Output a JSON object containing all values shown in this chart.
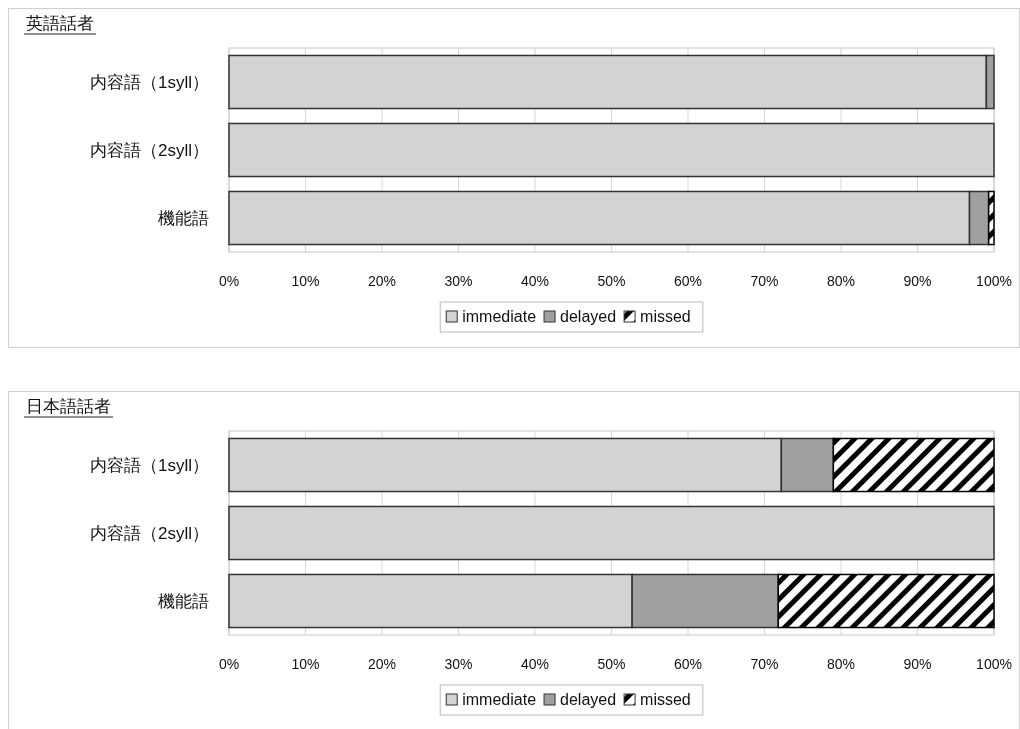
{
  "chart_data": [
    {
      "type": "bar",
      "title": "英語話者",
      "orientation": "horizontal",
      "stacked": true,
      "categories": [
        "内容語（1syll）",
        "内容語（2syll）",
        "機能語"
      ],
      "series": [
        {
          "name": "immediate",
          "color": "#d3d3d3",
          "values": [
            99,
            100,
            96.8
          ]
        },
        {
          "name": "delayed",
          "color": "#a0a0a0",
          "values": [
            1,
            0,
            2.5
          ]
        },
        {
          "name": "missed",
          "color": "#000000",
          "values": [
            0,
            0,
            0.7
          ]
        }
      ],
      "xlim": [
        0,
        100
      ],
      "xticks": [
        {
          "value": 0,
          "label": "0%"
        },
        {
          "value": 10,
          "label": "10%"
        },
        {
          "value": 20,
          "label": "20%"
        },
        {
          "value": 30,
          "label": "30%"
        },
        {
          "value": 40,
          "label": "40%"
        },
        {
          "value": 50,
          "label": "50%"
        },
        {
          "value": 60,
          "label": "60%"
        },
        {
          "value": 70,
          "label": "70%"
        },
        {
          "value": 80,
          "label": "80%"
        },
        {
          "value": 90,
          "label": "90%"
        },
        {
          "value": 100,
          "label": "100%"
        }
      ],
      "grid": "x",
      "legend": "bottom"
    },
    {
      "type": "bar",
      "title": "日本語話者",
      "orientation": "horizontal",
      "stacked": true,
      "categories": [
        "内容語（1syll）",
        "内容語（2syll）",
        "機能語"
      ],
      "series": [
        {
          "name": "immediate",
          "color": "#d3d3d3",
          "values": [
            72.2,
            100,
            52.7
          ]
        },
        {
          "name": "delayed",
          "color": "#a0a0a0",
          "values": [
            6.8,
            0,
            19.1
          ]
        },
        {
          "name": "missed",
          "color": "#000000",
          "values": [
            21,
            0,
            28.2
          ]
        }
      ],
      "xlim": [
        0,
        100
      ],
      "xticks": [
        {
          "value": 0,
          "label": "0%"
        },
        {
          "value": 10,
          "label": "10%"
        },
        {
          "value": 20,
          "label": "20%"
        },
        {
          "value": 30,
          "label": "30%"
        },
        {
          "value": 40,
          "label": "40%"
        },
        {
          "value": 50,
          "label": "50%"
        },
        {
          "value": 60,
          "label": "60%"
        },
        {
          "value": 70,
          "label": "70%"
        },
        {
          "value": 80,
          "label": "80%"
        },
        {
          "value": 90,
          "label": "90%"
        },
        {
          "value": 100,
          "label": "100%"
        }
      ],
      "grid": "x",
      "legend": "bottom"
    }
  ]
}
